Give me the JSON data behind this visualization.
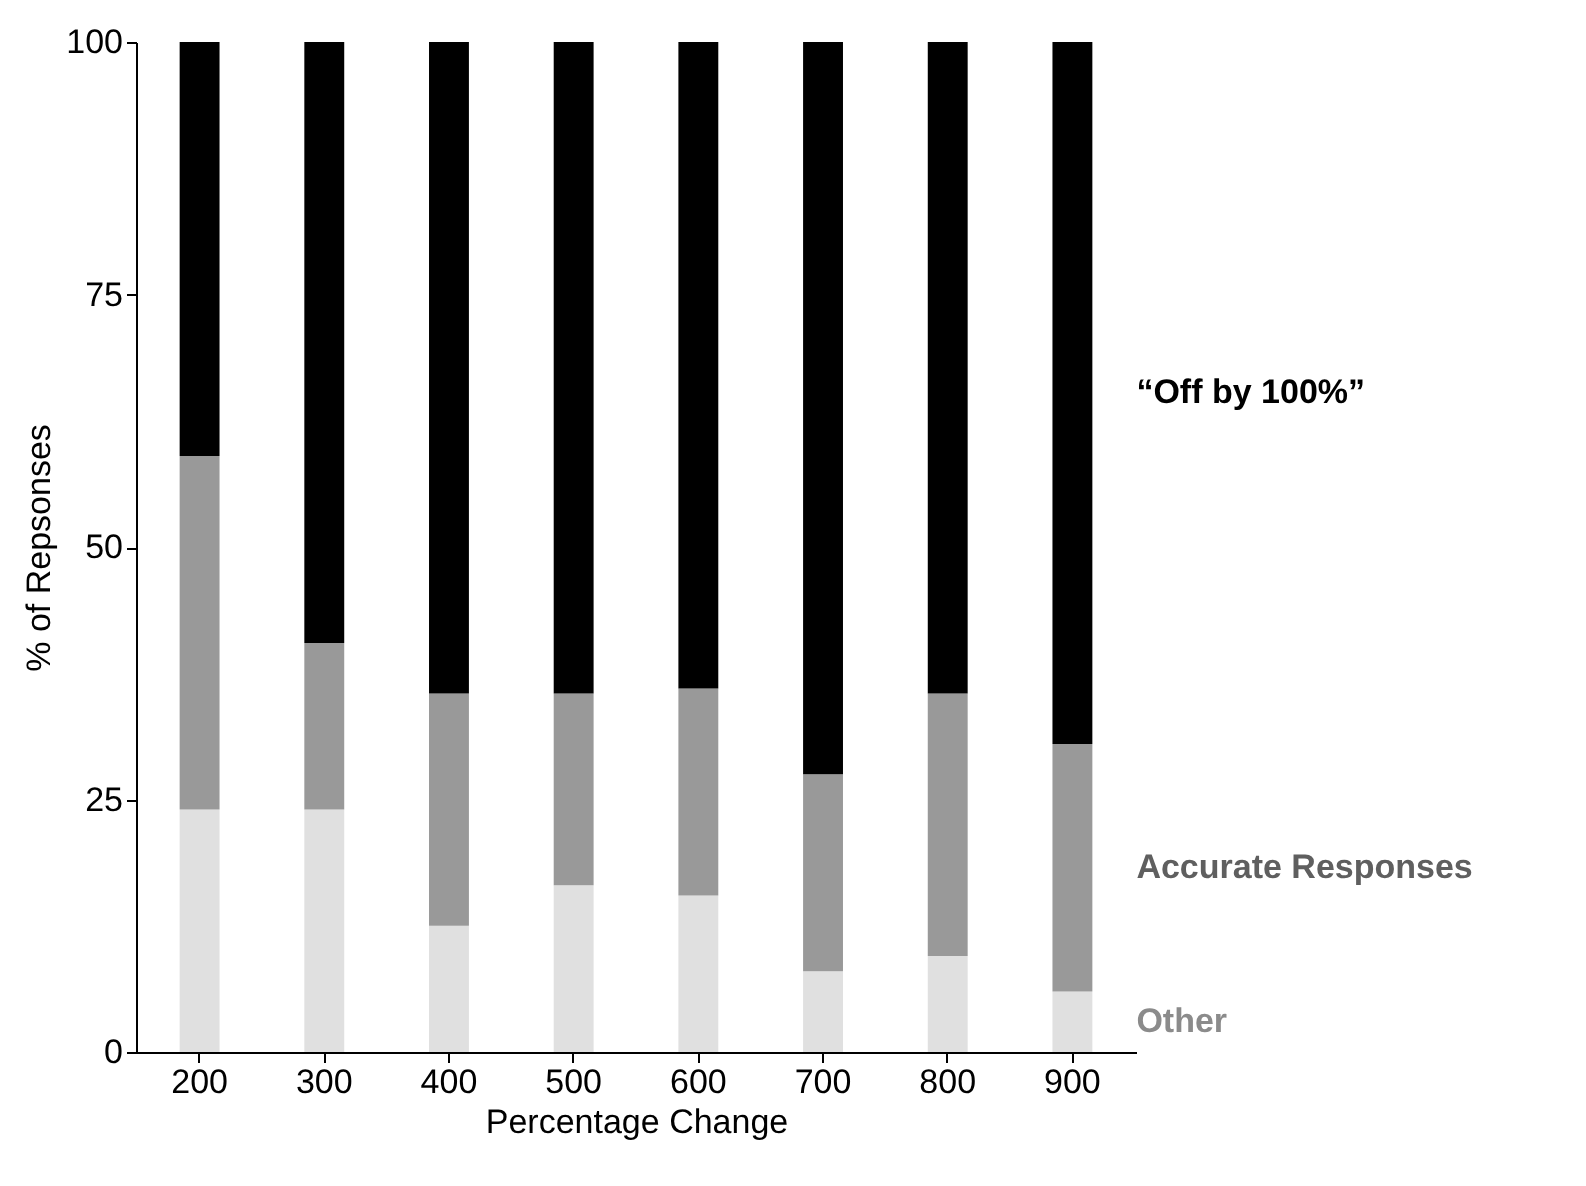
{
  "chart_data": {
    "type": "bar",
    "stacked": true,
    "xlabel": "Percentage Change",
    "ylabel": "% of Repsonses",
    "categories": [
      "200",
      "300",
      "400",
      "500",
      "600",
      "700",
      "800",
      "900"
    ],
    "series": [
      {
        "name": "Other",
        "color": "#e0e0e0",
        "values": [
          24,
          24,
          12.5,
          16.5,
          15.5,
          8,
          9.5,
          6
        ]
      },
      {
        "name": "Accurate Responses",
        "color": "#999999",
        "values": [
          35,
          16.5,
          23,
          19,
          20.5,
          19.5,
          26,
          24.5
        ]
      },
      {
        "name": "“Off by 100%”",
        "color": "#000000",
        "values": [
          41,
          59.5,
          64.5,
          64.5,
          64,
          72.5,
          64.5,
          69.5
        ]
      }
    ],
    "ylim": [
      0,
      100
    ],
    "yticks": [
      0,
      25,
      50,
      75,
      100
    ],
    "grid": false,
    "legend": "right"
  }
}
